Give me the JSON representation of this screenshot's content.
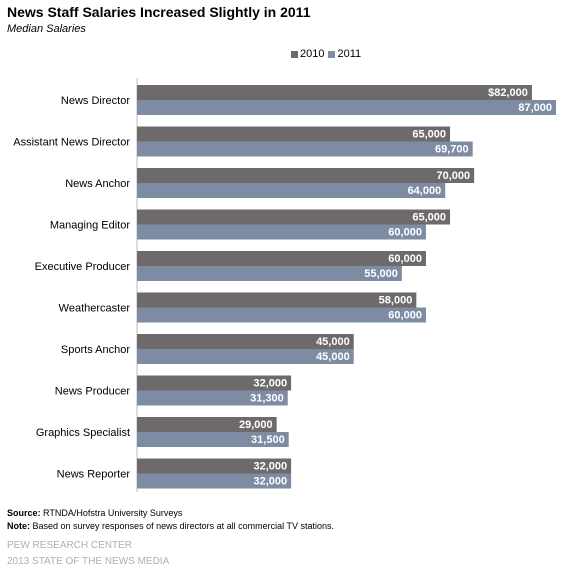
{
  "header": {
    "title": "News Staff Salaries Increased  Slightly in 2011",
    "subtitle": "Median Salaries"
  },
  "colors": {
    "series_2010": "#6e6a6b",
    "series_2011": "#7d8ca3"
  },
  "chart_data": {
    "type": "bar",
    "orientation": "horizontal",
    "title": "News Staff Salaries Increased  Slightly in 2011",
    "subtitle": "Median Salaries",
    "categories": [
      "News Director",
      "Assistant News Director",
      "News Anchor",
      "Managing Editor",
      "Executive Producer",
      "Weathercaster",
      "Sports Anchor",
      "News Producer",
      "Graphics Specialist",
      "News Reporter"
    ],
    "series": [
      {
        "name": "2010",
        "values": [
          82000,
          65000,
          70000,
          65000,
          60000,
          58000,
          45000,
          32000,
          29000,
          32000
        ],
        "labels": [
          "$82,000",
          "65,000",
          "70,000",
          "65,000",
          "60,000",
          "58,000",
          "45,000",
          "32,000",
          "29,000",
          "32,000"
        ]
      },
      {
        "name": "2011",
        "values": [
          87000,
          69700,
          64000,
          60000,
          55000,
          60000,
          45000,
          31300,
          31500,
          32000
        ],
        "labels": [
          "87,000",
          "69,700",
          "64,000",
          "60,000",
          "55,000",
          "60,000",
          "45,000",
          "31,300",
          "31,500",
          "32,000"
        ]
      }
    ],
    "xlim": [
      0,
      87000
    ],
    "grid": false,
    "legend_position": "top"
  },
  "footer": {
    "source_label": "Source:",
    "source_text": " RTNDA/Hofstra University Surveys",
    "note_label": "Note:",
    "note_text": " Based on survey responses of news directors at all commercial TV stations.",
    "brand_line1": "PEW RESEARCH CENTER",
    "brand_line2": "2013 STATE OF THE NEWS MEDIA"
  }
}
